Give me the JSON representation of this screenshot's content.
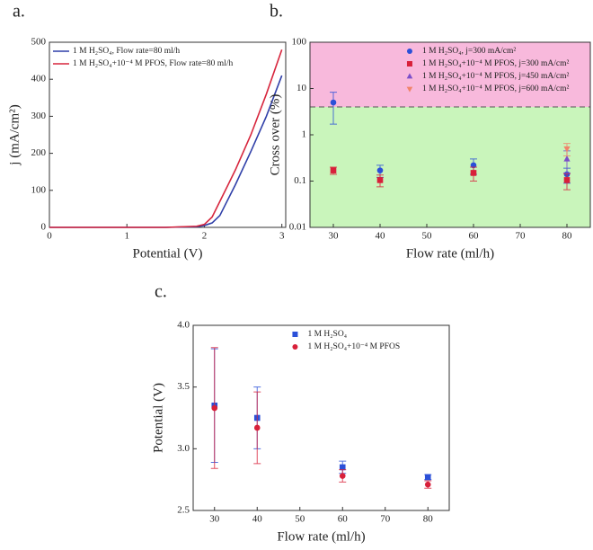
{
  "chart_data": [
    {
      "type": "line",
      "label": "a.",
      "x_label": "Potential (V)",
      "y_label": "j (mA/cm²)",
      "x": [
        0,
        0.5,
        1,
        1.5,
        1.9,
        2.0,
        2.1,
        2.2,
        2.4,
        2.6,
        2.8,
        3.0
      ],
      "series": [
        {
          "name": "1 M H₂SO₄, Flow rate=80 ml/h",
          "color": "#2f3fa8",
          "values": [
            0,
            0,
            0,
            0,
            2,
            5,
            12,
            32,
            115,
            205,
            300,
            410
          ]
        },
        {
          "name": "1 M H₂SO₄+10⁻⁴ M PFOS, Flow rate=80 ml/h",
          "color": "#d7263d",
          "values": [
            0,
            0,
            0,
            0,
            3,
            8,
            28,
            70,
            155,
            250,
            360,
            480
          ]
        }
      ],
      "xlim": [
        0,
        3.05
      ],
      "xticks": [
        0,
        1,
        2,
        3
      ],
      "ylim": [
        0,
        500
      ],
      "yticks": [
        0,
        100,
        200,
        300,
        400,
        500
      ],
      "legend": "upper left"
    },
    {
      "type": "scatter",
      "label": "b.",
      "x_label": "Flow rate (ml/h)",
      "y_label": "Cross over (%)",
      "y_scale": "log",
      "threshold": 4,
      "region_colors": [
        "#c9f5bb",
        "#f8b9dc"
      ],
      "series": [
        {
          "name": "1 M H₂SO₄, j=300 mA/cm²",
          "color": "#2b50d8",
          "marker": "circle",
          "x": [
            30,
            40,
            60,
            80
          ],
          "values": [
            5,
            0.17,
            0.22,
            0.14
          ],
          "errors": [
            3.3,
            0.05,
            0.08,
            0.05
          ]
        },
        {
          "name": "1 M H₂SO₄+10⁻⁴ M PFOS, j=300 mA/cm²",
          "color": "#d8203a",
          "marker": "square",
          "x": [
            30,
            40,
            60,
            80
          ],
          "values": [
            0.17,
            0.105,
            0.15,
            0.105
          ],
          "errors": [
            0.03,
            0.03,
            0.05,
            0.04
          ]
        },
        {
          "name": "1 M H₂SO₄+10⁻⁴ M PFOS, j=450 mA/cm²",
          "color": "#7b4fc9",
          "marker": "triangle-up",
          "x": [
            80
          ],
          "values": [
            0.3
          ],
          "errors": [
            0.15
          ]
        },
        {
          "name": "1 M H₂SO₄+10⁻⁴ M PFOS, j=600 mA/cm²",
          "color": "#f0846a",
          "marker": "triangle-down",
          "x": [
            80
          ],
          "values": [
            0.5
          ],
          "errors": [
            0.15
          ]
        }
      ],
      "xlim": [
        25,
        85
      ],
      "xticks": [
        30,
        40,
        50,
        60,
        70,
        80
      ],
      "ylim": [
        0.01,
        100
      ],
      "yticks": [
        0.01,
        0.1,
        1,
        10,
        100
      ],
      "legend": "upper right"
    },
    {
      "type": "scatter",
      "label": "c.",
      "x_label": "Flow rate (ml/h)",
      "y_label": "Potential (V)",
      "series": [
        {
          "name": "1 M H₂SO₄",
          "color": "#2b50d8",
          "marker": "square",
          "x": [
            30,
            40,
            60,
            80
          ],
          "values": [
            3.35,
            3.25,
            2.85,
            2.77
          ],
          "errors": [
            0.46,
            0.25,
            0.05,
            0.02
          ]
        },
        {
          "name": "1 M H₂SO₄+10⁻⁴ M PFOS",
          "color": "#d8203a",
          "marker": "circle",
          "x": [
            30,
            40,
            60,
            80
          ],
          "values": [
            3.33,
            3.17,
            2.78,
            2.71
          ],
          "errors": [
            0.49,
            0.29,
            0.05,
            0.03
          ]
        }
      ],
      "xlim": [
        25,
        85
      ],
      "xticks": [
        30,
        40,
        50,
        60,
        70,
        80
      ],
      "ylim": [
        2.5,
        4.0
      ],
      "yticks": [
        {
          "value": 2.5,
          "label": "2.5"
        },
        {
          "value": 3.0,
          "label": "3.0"
        },
        {
          "value": 3.5,
          "label": "3.5"
        },
        {
          "value": 4.0,
          "label": "4.0"
        }
      ],
      "legend": "upper right"
    }
  ]
}
